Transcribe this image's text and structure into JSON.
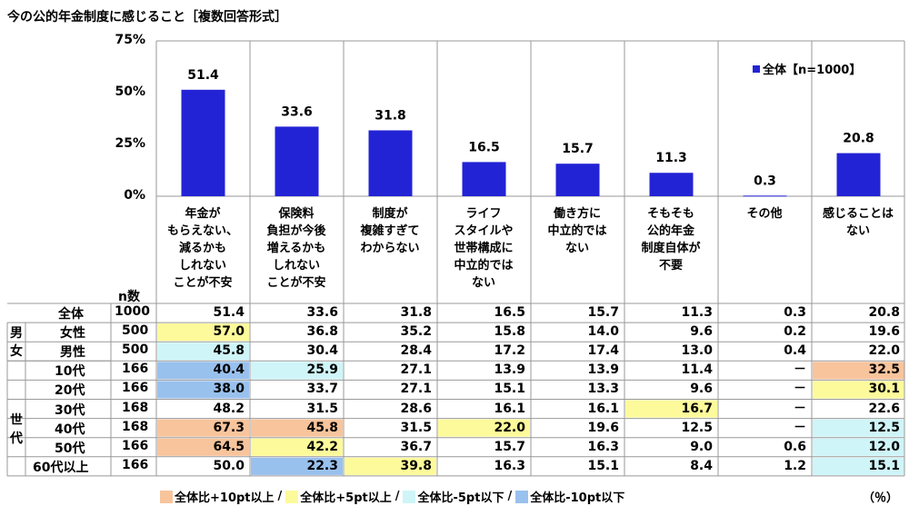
{
  "title": "今の公的年金制度に感じること［複数回答形式］",
  "chart_data": {
    "type": "bar",
    "legend_label": "全体【n=1000】",
    "ylim": [
      0,
      75
    ],
    "yticks": [
      "0%",
      "25%",
      "50%",
      "75%"
    ],
    "categories": [
      "年金が\nもらえない、\n減るかも\nしれない\nことが不安",
      "保険料\n負担が今後\n増えるかも\nしれない\nことが不安",
      "制度が\n複雑すぎて\nわからない",
      "ライフ\nスタイルや\n世帯構成に\n中立的では\nない",
      "働き方に\n中立的では\nない",
      "そもそも\n公的年金\n制度自体が\n不要",
      "その他",
      "感じることは\nない"
    ],
    "values": [
      51.4,
      33.6,
      31.8,
      16.5,
      15.7,
      11.3,
      0.3,
      20.8
    ],
    "colors": {
      "bar": "#2323d6"
    }
  },
  "table": {
    "n_header": "n数",
    "percent_unit": "（％）",
    "group_labels": {
      "gender": "男\n女",
      "age": "世\n代"
    },
    "rows": [
      {
        "label": "全体",
        "n": "1000",
        "values": [
          "51.4",
          "33.6",
          "31.8",
          "16.5",
          "15.7",
          "11.3",
          "0.3",
          "20.8"
        ],
        "hl": [
          "",
          "",
          "",
          "",
          "",
          "",
          "",
          ""
        ]
      },
      {
        "label": "女性",
        "n": "500",
        "values": [
          "57.0",
          "36.8",
          "35.2",
          "15.8",
          "14.0",
          "9.6",
          "0.2",
          "19.6"
        ],
        "hl": [
          "p5",
          "",
          "",
          "",
          "",
          "",
          "",
          ""
        ]
      },
      {
        "label": "男性",
        "n": "500",
        "values": [
          "45.8",
          "30.4",
          "28.4",
          "17.2",
          "17.4",
          "13.0",
          "0.4",
          "22.0"
        ],
        "hl": [
          "m5",
          "",
          "",
          "",
          "",
          "",
          "",
          ""
        ]
      },
      {
        "label": "10代",
        "n": "166",
        "values": [
          "40.4",
          "25.9",
          "27.1",
          "13.9",
          "13.9",
          "11.4",
          "－",
          "32.5"
        ],
        "hl": [
          "m10",
          "m5",
          "",
          "",
          "",
          "",
          "",
          "p10"
        ]
      },
      {
        "label": "20代",
        "n": "166",
        "values": [
          "38.0",
          "33.7",
          "27.1",
          "15.1",
          "13.3",
          "9.6",
          "－",
          "30.1"
        ],
        "hl": [
          "m10",
          "",
          "",
          "",
          "",
          "",
          "",
          "p5"
        ]
      },
      {
        "label": "30代",
        "n": "168",
        "values": [
          "48.2",
          "31.5",
          "28.6",
          "16.1",
          "16.1",
          "16.7",
          "－",
          "22.6"
        ],
        "hl": [
          "",
          "",
          "",
          "",
          "",
          "p5",
          "",
          ""
        ]
      },
      {
        "label": "40代",
        "n": "168",
        "values": [
          "67.3",
          "45.8",
          "31.5",
          "22.0",
          "19.6",
          "12.5",
          "－",
          "12.5"
        ],
        "hl": [
          "p10",
          "p10",
          "",
          "p5",
          "",
          "",
          "",
          "m5"
        ]
      },
      {
        "label": "50代",
        "n": "166",
        "values": [
          "64.5",
          "42.2",
          "36.7",
          "15.7",
          "16.3",
          "9.0",
          "0.6",
          "12.0"
        ],
        "hl": [
          "p10",
          "p5",
          "",
          "",
          "",
          "",
          "",
          "m5"
        ]
      },
      {
        "label": "60代以上",
        "n": "166",
        "values": [
          "50.0",
          "22.3",
          "39.8",
          "16.3",
          "15.1",
          "8.4",
          "1.2",
          "15.1"
        ],
        "hl": [
          "",
          "m10",
          "p5",
          "",
          "",
          "",
          "",
          "m5"
        ]
      }
    ],
    "highlight_colors": {
      "p10": "#f8c49c",
      "p5": "#fdfa9b",
      "m5": "#cff5f8",
      "m10": "#99c1ee"
    },
    "legend": [
      {
        "key": "p10",
        "label": "全体比+10pt以上"
      },
      {
        "key": "p5",
        "label": "全体比+5pt以上"
      },
      {
        "key": "m5",
        "label": "全体比-5pt以下"
      },
      {
        "key": "m10",
        "label": "全体比-10pt以下"
      }
    ]
  }
}
